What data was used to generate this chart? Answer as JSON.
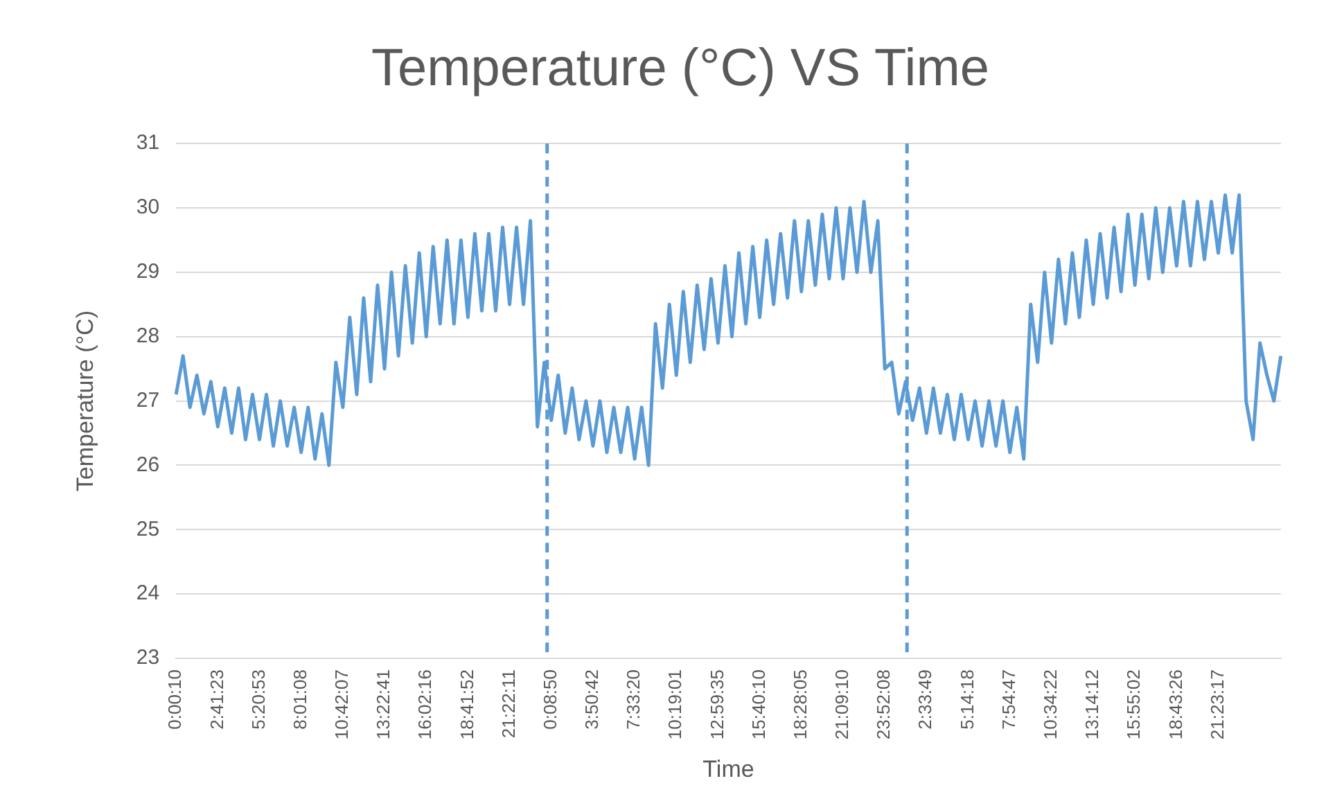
{
  "chart_data": {
    "type": "line",
    "title": "Temperature (°C) VS Time",
    "xlabel": "Time",
    "ylabel": "Temperature (°C)",
    "categories": [
      "0:00:10",
      null,
      null,
      null,
      null,
      null,
      "2:41:23",
      null,
      null,
      null,
      null,
      null,
      "5:20:53",
      null,
      null,
      null,
      null,
      null,
      "8:01:08",
      null,
      null,
      null,
      null,
      null,
      "10:42:07",
      null,
      null,
      null,
      null,
      null,
      "13:22:41",
      null,
      null,
      null,
      null,
      null,
      "16:02:16",
      null,
      null,
      null,
      null,
      null,
      "18:41:52",
      null,
      null,
      null,
      null,
      null,
      "21:22:11",
      null,
      null,
      null,
      null,
      null,
      "0:08:50",
      null,
      null,
      null,
      null,
      null,
      "3:50:42",
      null,
      null,
      null,
      null,
      null,
      "7:33:20",
      null,
      null,
      null,
      null,
      null,
      "10:19:01",
      null,
      null,
      null,
      null,
      null,
      "12:59:35",
      null,
      null,
      null,
      null,
      null,
      "15:40:10",
      null,
      null,
      null,
      null,
      null,
      "18:28:05",
      null,
      null,
      null,
      null,
      null,
      "21:09:10",
      null,
      null,
      null,
      null,
      null,
      "23:52:08",
      null,
      null,
      null,
      null,
      null,
      "2:33:49",
      null,
      null,
      null,
      null,
      null,
      "5:14:18",
      null,
      null,
      null,
      null,
      null,
      "7:54:47",
      null,
      null,
      null,
      null,
      null,
      "10:34:22",
      null,
      null,
      null,
      null,
      null,
      "13:14:12",
      null,
      null,
      null,
      null,
      null,
      "15:55:02",
      null,
      null,
      null,
      null,
      null,
      "18:43:26",
      null,
      null,
      null,
      null,
      null,
      "21:23:17",
      null,
      null,
      null,
      null,
      null,
      null,
      null,
      null,
      null
    ],
    "series": [
      {
        "color": "#5b9bd5",
        "values": [
          27.1,
          27.7,
          26.9,
          27.4,
          26.8,
          27.3,
          26.6,
          27.2,
          26.5,
          27.2,
          26.4,
          27.1,
          26.4,
          27.1,
          26.3,
          27.0,
          26.3,
          26.9,
          26.2,
          26.9,
          26.1,
          26.8,
          26.0,
          27.6,
          26.9,
          28.3,
          27.1,
          28.6,
          27.3,
          28.8,
          27.5,
          29.0,
          27.7,
          29.1,
          27.9,
          29.3,
          28.0,
          29.4,
          28.2,
          29.5,
          28.2,
          29.5,
          28.3,
          29.6,
          28.4,
          29.6,
          28.4,
          29.7,
          28.5,
          29.7,
          28.5,
          29.8,
          26.6,
          27.6,
          26.7,
          27.4,
          26.5,
          27.2,
          26.4,
          27.0,
          26.3,
          27.0,
          26.2,
          26.9,
          26.2,
          26.9,
          26.1,
          26.9,
          26.0,
          28.2,
          27.2,
          28.5,
          27.4,
          28.7,
          27.6,
          28.8,
          27.8,
          28.9,
          27.9,
          29.1,
          28.0,
          29.3,
          28.2,
          29.4,
          28.3,
          29.5,
          28.5,
          29.6,
          28.6,
          29.8,
          28.7,
          29.8,
          28.8,
          29.9,
          28.9,
          30.0,
          28.9,
          30.0,
          29.0,
          30.1,
          29.0,
          29.8,
          27.5,
          27.6,
          26.8,
          27.3,
          26.7,
          27.2,
          26.5,
          27.2,
          26.5,
          27.1,
          26.4,
          27.1,
          26.4,
          27.0,
          26.3,
          27.0,
          26.3,
          27.0,
          26.2,
          26.9,
          26.1,
          28.5,
          27.6,
          29.0,
          27.9,
          29.2,
          28.2,
          29.3,
          28.3,
          29.5,
          28.5,
          29.6,
          28.6,
          29.7,
          28.7,
          29.9,
          28.8,
          29.9,
          28.9,
          30.0,
          29.0,
          30.0,
          29.1,
          30.1,
          29.1,
          30.1,
          29.2,
          30.1,
          29.3,
          30.2,
          29.3,
          30.2,
          27.0,
          26.4,
          27.9,
          27.4,
          27.0,
          27.7
        ]
      }
    ],
    "ylim": [
      23,
      31
    ],
    "yticks": [
      23,
      24,
      25,
      26,
      27,
      28,
      29,
      30,
      31
    ],
    "grid": "y",
    "legend": false
  }
}
